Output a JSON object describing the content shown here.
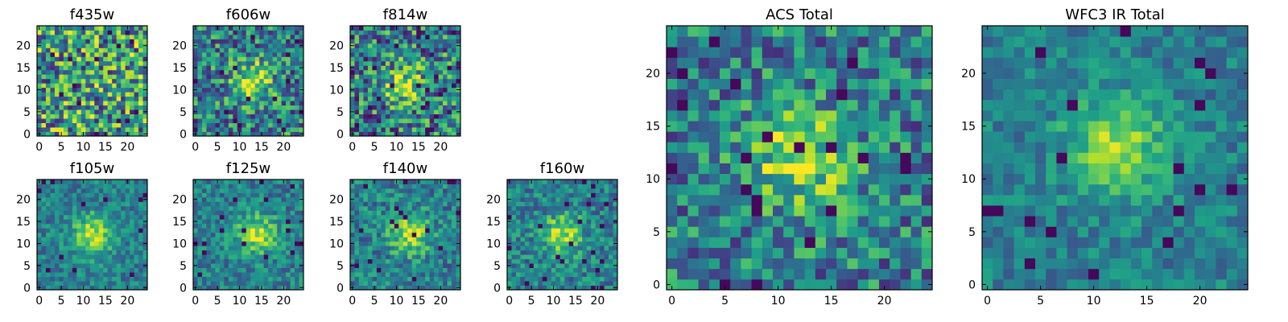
{
  "chart_data": [
    {
      "type": "heatmap",
      "title": "f435w",
      "xlim": [
        -0.5,
        24.5
      ],
      "ylim": [
        -0.5,
        24.5
      ],
      "xticks": [
        0,
        5,
        10,
        15,
        20
      ],
      "yticks": [
        0,
        5,
        10,
        15,
        20
      ],
      "grid": false,
      "colormap": "viridis",
      "source_peak": null,
      "noise_level": 0.45
    },
    {
      "type": "heatmap",
      "title": "f606w",
      "xlim": [
        -0.5,
        24.5
      ],
      "ylim": [
        -0.5,
        24.5
      ],
      "xticks": [
        0,
        5,
        10,
        15,
        20
      ],
      "yticks": [
        0,
        5,
        10,
        15,
        20
      ],
      "grid": false,
      "colormap": "viridis",
      "source_peak": [
        13,
        12
      ],
      "noise_level": 0.35
    },
    {
      "type": "heatmap",
      "title": "f814w",
      "xlim": [
        -0.5,
        24.5
      ],
      "ylim": [
        -0.5,
        24.5
      ],
      "xticks": [
        0,
        5,
        10,
        15,
        20
      ],
      "yticks": [
        0,
        5,
        10,
        15,
        20
      ],
      "grid": false,
      "colormap": "viridis",
      "source_peak": [
        12,
        11
      ],
      "noise_level": 0.4
    },
    {
      "type": "heatmap",
      "title": "f105w",
      "xlim": [
        -0.5,
        24.5
      ],
      "ylim": [
        -0.5,
        24.5
      ],
      "xticks": [
        0,
        5,
        10,
        15,
        20
      ],
      "yticks": [
        0,
        5,
        10,
        15,
        20
      ],
      "grid": false,
      "colormap": "viridis",
      "source_peak": [
        12,
        12
      ],
      "noise_level": 0.18
    },
    {
      "type": "heatmap",
      "title": "f125w",
      "xlim": [
        -0.5,
        24.5
      ],
      "ylim": [
        -0.5,
        24.5
      ],
      "xticks": [
        0,
        5,
        10,
        15,
        20
      ],
      "yticks": [
        0,
        5,
        10,
        15,
        20
      ],
      "grid": false,
      "colormap": "viridis",
      "source_peak": [
        14,
        12
      ],
      "noise_level": 0.2
    },
    {
      "type": "heatmap",
      "title": "f140w",
      "xlim": [
        -0.5,
        24.5
      ],
      "ylim": [
        -0.5,
        24.5
      ],
      "xticks": [
        0,
        5,
        10,
        15,
        20
      ],
      "yticks": [
        0,
        5,
        10,
        15,
        20
      ],
      "grid": false,
      "colormap": "viridis",
      "source_peak": [
        13,
        12
      ],
      "noise_level": 0.22
    },
    {
      "type": "heatmap",
      "title": "f160w",
      "xlim": [
        -0.5,
        24.5
      ],
      "ylim": [
        -0.5,
        24.5
      ],
      "xticks": [
        0,
        5,
        10,
        15,
        20
      ],
      "yticks": [
        0,
        5,
        10,
        15,
        20
      ],
      "grid": false,
      "colormap": "viridis",
      "source_peak": [
        12,
        12
      ],
      "noise_level": 0.22
    },
    {
      "type": "heatmap",
      "title": "ACS Total",
      "xlim": [
        -0.5,
        24.5
      ],
      "ylim": [
        -0.5,
        24.5
      ],
      "xticks": [
        0,
        5,
        10,
        15,
        20
      ],
      "yticks": [
        0,
        5,
        10,
        15,
        20
      ],
      "grid": false,
      "colormap": "viridis",
      "source_peak": [
        12,
        12
      ],
      "noise_level": 0.3
    },
    {
      "type": "heatmap",
      "title": "WFC3 IR Total",
      "xlim": [
        -0.5,
        24.5
      ],
      "ylim": [
        -0.5,
        24.5
      ],
      "xticks": [
        0,
        5,
        10,
        15,
        20
      ],
      "yticks": [
        0,
        5,
        10,
        15,
        20
      ],
      "grid": false,
      "colormap": "viridis",
      "source_peak": [
        12,
        13
      ],
      "noise_level": 0.16
    }
  ]
}
